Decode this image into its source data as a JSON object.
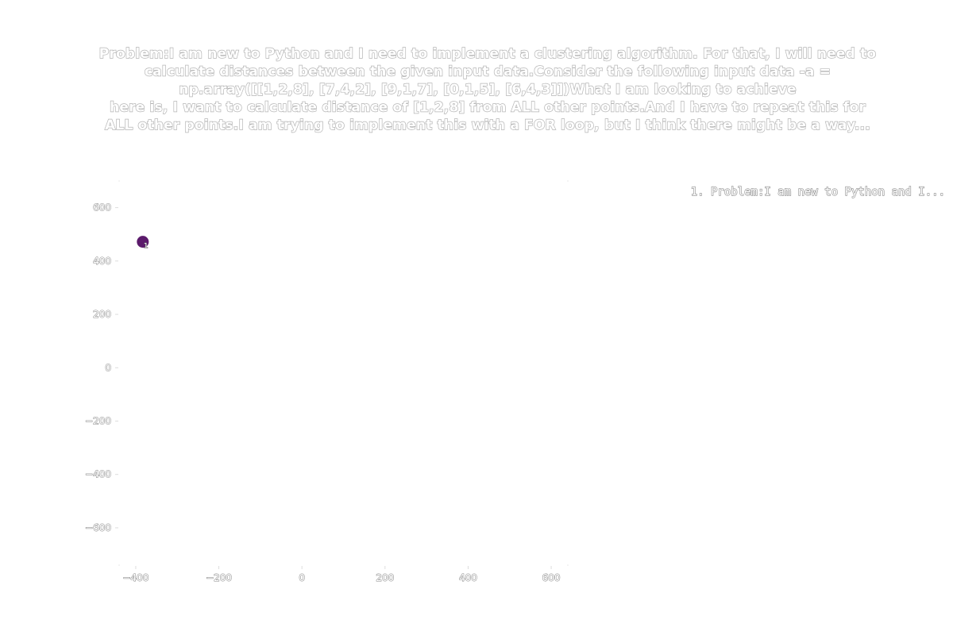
{
  "chart_data": {
    "type": "scatter",
    "title": "Problem:I am new to Python and I need to implement a clustering algorithm. For that, I will need to calculate distances between the given input data.Consider the following input data -a = np.array([[1,2,8],      [7,4,2],      [9,1,7],      [0,1,5],      [6,4,3]])What I am looking to achieve here is, I want to calculate distance of [1,2,8] from ALL other points.And I have to repeat this for ALL other points.I am trying to implement this with a FOR loop, but I think there might be a way...",
    "title_lines": [
      "Problem:I am new to Python and I need to implement a clustering algorithm. For that, I will need to",
      "calculate distances between the given input data.Consider the following input data -a =",
      "np.array([[1,2,8],      [7,4,2],      [9,1,7],      [0,1,5],      [6,4,3]])What I am looking to achieve",
      "here is, I want to calculate distance of [1,2,8] from ALL other points.And I have to repeat this for",
      "ALL other points.I am trying to implement this with a FOR loop, but I think there might be a way..."
    ],
    "xlabel": "",
    "ylabel": "",
    "xlim": [
      -440,
      640
    ],
    "ylim": [
      -740,
      700
    ],
    "x_ticks": [
      -400,
      -200,
      0,
      200,
      400,
      600
    ],
    "y_ticks": [
      600,
      400,
      200,
      0,
      -200,
      -400,
      -600
    ],
    "x_tick_labels": [
      "−400",
      "−200",
      "0",
      "200",
      "400",
      "600"
    ],
    "y_tick_labels": [
      "600",
      "400",
      "200",
      "0",
      "−200",
      "−400",
      "−600"
    ],
    "grid": false,
    "legend_position": "top-right",
    "legend": [
      {
        "label": "1. Problem:I am new to Python and I...",
        "color": "#3d0a4f"
      }
    ],
    "points": [
      {
        "x": -383,
        "y": 472,
        "label": "1",
        "color": "#5b1a6b"
      }
    ]
  }
}
